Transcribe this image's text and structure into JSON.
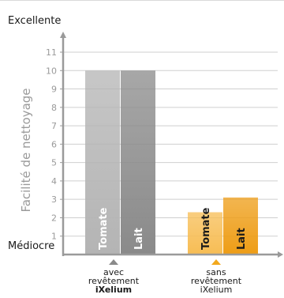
{
  "chart_data": {
    "type": "bar",
    "ylabel": "Facilité de nettoyage",
    "top_label": "Excellente",
    "bottom_label": "Médiocre",
    "ylim": [
      0,
      11
    ],
    "yticks": [
      1,
      2,
      3,
      4,
      5,
      6,
      7,
      8,
      9,
      10,
      11
    ],
    "grid": true,
    "groups": [
      {
        "label_lines": [
          "avec",
          "revêtement",
          "iXelium"
        ],
        "bold_line": 2,
        "bars": [
          {
            "name": "Tomate",
            "value": 10
          },
          {
            "name": "Lait",
            "value": 10
          }
        ]
      },
      {
        "label_lines": [
          "sans",
          "revêtement",
          "iXelium"
        ],
        "bold_line": -1,
        "bars": [
          {
            "name": "Tomate",
            "value": 2.3
          },
          {
            "name": "Lait",
            "value": 3.1
          }
        ]
      }
    ],
    "colors": {
      "group1_bar1": "#b4b4b4",
      "group1_bar2": "#8a8a8a",
      "group2_bar1": "#f7bd54",
      "group2_bar2": "#ee9d16",
      "marker_group1": "#8a8a8a",
      "marker_group2": "#f2a81d",
      "gridline": "#cfcfcf",
      "axis": "#9a9a9a",
      "text": "#1a1a1a",
      "muted_text": "#9a9a9a"
    }
  }
}
